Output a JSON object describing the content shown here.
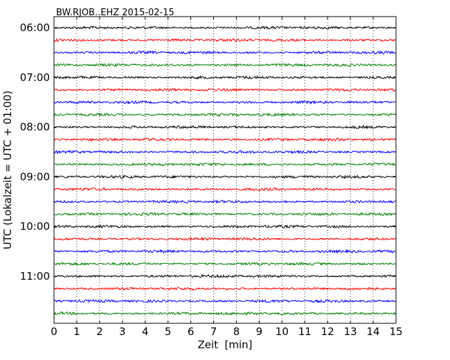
{
  "chart_data": {
    "type": "line",
    "title": "BW.RJOB..EHZ 2015-02-15",
    "xlabel": "Zeit  [min]",
    "ylabel": "UTC (Lokalzeit = UTC + 01:00)",
    "xlim": [
      0,
      15
    ],
    "xticks": [
      0,
      1,
      2,
      3,
      4,
      5,
      6,
      7,
      8,
      9,
      10,
      11,
      12,
      13,
      14,
      15
    ],
    "yticks": [
      "06:00",
      "07:00",
      "08:00",
      "09:00",
      "10:00",
      "11:00"
    ],
    "trace_colors": [
      "#000000",
      "#ff0000",
      "#0000ff",
      "#008000"
    ],
    "trace_count": 24,
    "grid": "vertical-dotted",
    "series": [
      {
        "start": "06:00"
      },
      {
        "start": "06:15"
      },
      {
        "start": "06:30"
      },
      {
        "start": "06:45"
      },
      {
        "start": "07:00"
      },
      {
        "start": "07:15"
      },
      {
        "start": "07:30"
      },
      {
        "start": "07:45"
      },
      {
        "start": "08:00"
      },
      {
        "start": "08:15"
      },
      {
        "start": "08:30"
      },
      {
        "start": "08:45"
      },
      {
        "start": "09:00"
      },
      {
        "start": "09:15"
      },
      {
        "start": "09:30"
      },
      {
        "start": "09:45"
      },
      {
        "start": "10:00"
      },
      {
        "start": "10:15"
      },
      {
        "start": "10:30"
      },
      {
        "start": "10:45"
      },
      {
        "start": "11:00"
      },
      {
        "start": "11:15"
      },
      {
        "start": "11:30"
      },
      {
        "start": "11:45"
      }
    ]
  }
}
